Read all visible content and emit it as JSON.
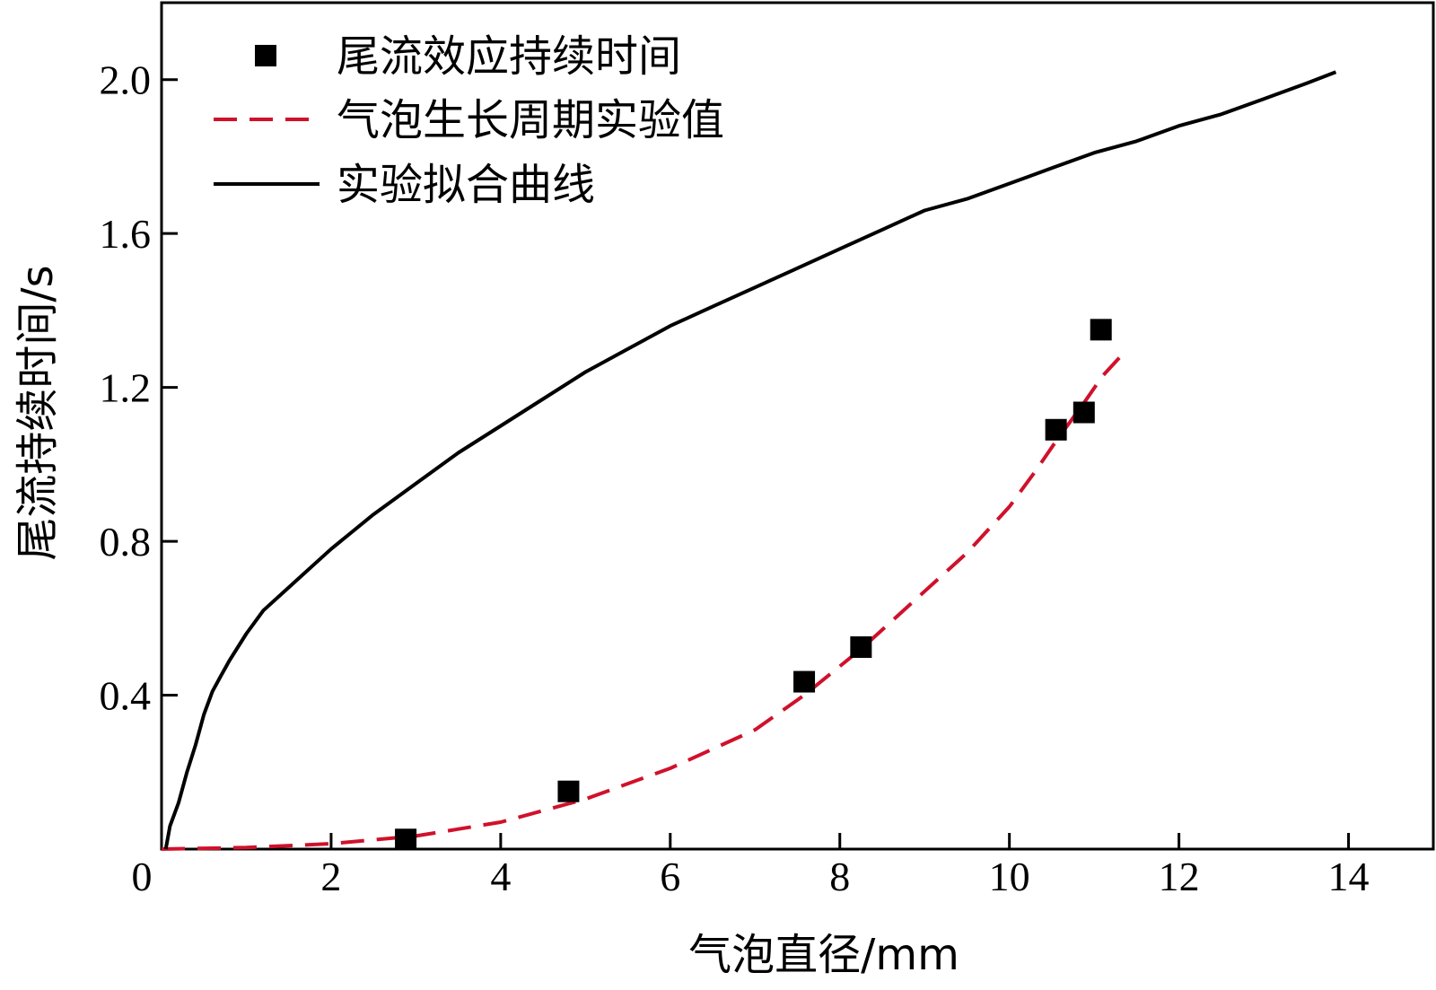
{
  "chart_data": {
    "type": "line",
    "xlabel": "气泡直径/mm",
    "ylabel": "尾流持续时间/s",
    "xlim": [
      0,
      15
    ],
    "ylim": [
      0,
      2.2
    ],
    "x_ticks": [
      2,
      4,
      6,
      8,
      10,
      12,
      14
    ],
    "y_ticks": [
      0.4,
      0.8,
      1.2,
      1.6,
      2.0
    ],
    "x_tick_labels": [
      "2",
      "4",
      "6",
      "8",
      "10",
      "12",
      "14"
    ],
    "y_tick_labels": [
      "0.4",
      "0.8",
      "1.2",
      "1.6",
      "2.0"
    ],
    "origin_label": "0",
    "grid": false,
    "legend_position": "top-left",
    "series": [
      {
        "name": "尾流效应持续时间",
        "kind": "scatter",
        "marker": "square",
        "color": "#000000",
        "x": [
          2.88,
          4.8,
          7.58,
          8.25,
          10.55,
          10.88,
          11.08
        ],
        "y": [
          0.025,
          0.15,
          0.435,
          0.525,
          1.09,
          1.135,
          1.35
        ]
      },
      {
        "name": "气泡生长周期实验值",
        "kind": "line",
        "style": "dashed",
        "color": "#d0112b",
        "x": [
          0.0,
          1.0,
          2.0,
          3.0,
          4.0,
          5.0,
          6.0,
          7.0,
          7.58,
          8.25,
          9.0,
          9.5,
          10.0,
          10.3,
          10.55,
          10.88,
          11.1,
          11.35
        ],
        "y": [
          0.0,
          0.004,
          0.014,
          0.034,
          0.07,
          0.13,
          0.21,
          0.31,
          0.4,
          0.52,
          0.67,
          0.77,
          0.89,
          0.98,
          1.06,
          1.16,
          1.23,
          1.29
        ]
      },
      {
        "name": "实验拟合曲线",
        "kind": "line",
        "style": "solid",
        "color": "#000000",
        "x": [
          0.05,
          0.1,
          0.2,
          0.3,
          0.4,
          0.5,
          0.6,
          0.7,
          0.8,
          1.0,
          1.2,
          1.5,
          1.8,
          2.0,
          2.5,
          3.0,
          3.5,
          4.0,
          4.5,
          5.0,
          5.5,
          6.0,
          6.5,
          7.0,
          7.5,
          8.0,
          8.5,
          9.0,
          9.5,
          10.0,
          10.5,
          11.0,
          11.5,
          12.0,
          12.5,
          13.0,
          13.5,
          13.85
        ],
        "y": [
          0.0,
          0.06,
          0.12,
          0.2,
          0.27,
          0.35,
          0.41,
          0.45,
          0.49,
          0.56,
          0.62,
          0.68,
          0.74,
          0.78,
          0.87,
          0.95,
          1.03,
          1.1,
          1.17,
          1.24,
          1.3,
          1.36,
          1.41,
          1.46,
          1.51,
          1.56,
          1.61,
          1.66,
          1.69,
          1.73,
          1.77,
          1.81,
          1.84,
          1.88,
          1.91,
          1.95,
          1.99,
          2.02
        ]
      }
    ]
  }
}
